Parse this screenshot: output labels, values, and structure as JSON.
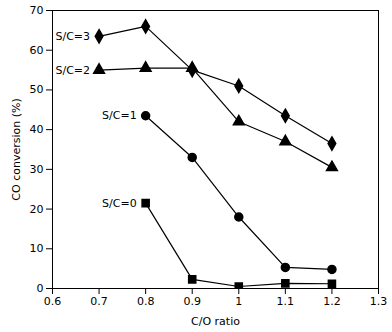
{
  "chart_data": {
    "type": "line",
    "x_label": "C/O ratio",
    "y_label": "CO conversion (%)",
    "xlim": [
      0.6,
      1.3
    ],
    "xticks": [
      0.6,
      0.7,
      0.8,
      0.9,
      1.0,
      1.1,
      1.2,
      1.3
    ],
    "ylim": [
      0,
      70
    ],
    "yticks": [
      0,
      10,
      20,
      30,
      40,
      50,
      60,
      70
    ],
    "grid": false,
    "series": [
      {
        "name": "S/C=3",
        "color": "#000000",
        "marker": "diamond",
        "line_style": "solid",
        "x": [
          0.7,
          0.8,
          0.9,
          1.0,
          1.1,
          1.2
        ],
        "values": [
          63.5,
          66,
          55,
          51,
          43.5,
          36.5
        ]
      },
      {
        "name": "S/C=2",
        "color": "#000000",
        "marker": "triangle",
        "line_style": "solid",
        "x": [
          0.7,
          0.8,
          0.9,
          1.0,
          1.1,
          1.2
        ],
        "values": [
          55,
          55.5,
          55.5,
          42,
          37,
          30.5
        ]
      },
      {
        "name": "S/C=1",
        "color": "#000000",
        "marker": "circle",
        "line_style": "solid",
        "x": [
          0.8,
          0.9,
          1.0,
          1.1,
          1.2
        ],
        "values": [
          43.5,
          33,
          18,
          5.3,
          4.8
        ]
      },
      {
        "name": "S/C=0",
        "color": "#000000",
        "marker": "square",
        "line_style": "solid",
        "x": [
          0.8,
          0.9,
          1.0,
          1.1,
          1.2
        ],
        "values": [
          21.5,
          2.3,
          0.5,
          1.3,
          1.2
        ]
      }
    ]
  }
}
